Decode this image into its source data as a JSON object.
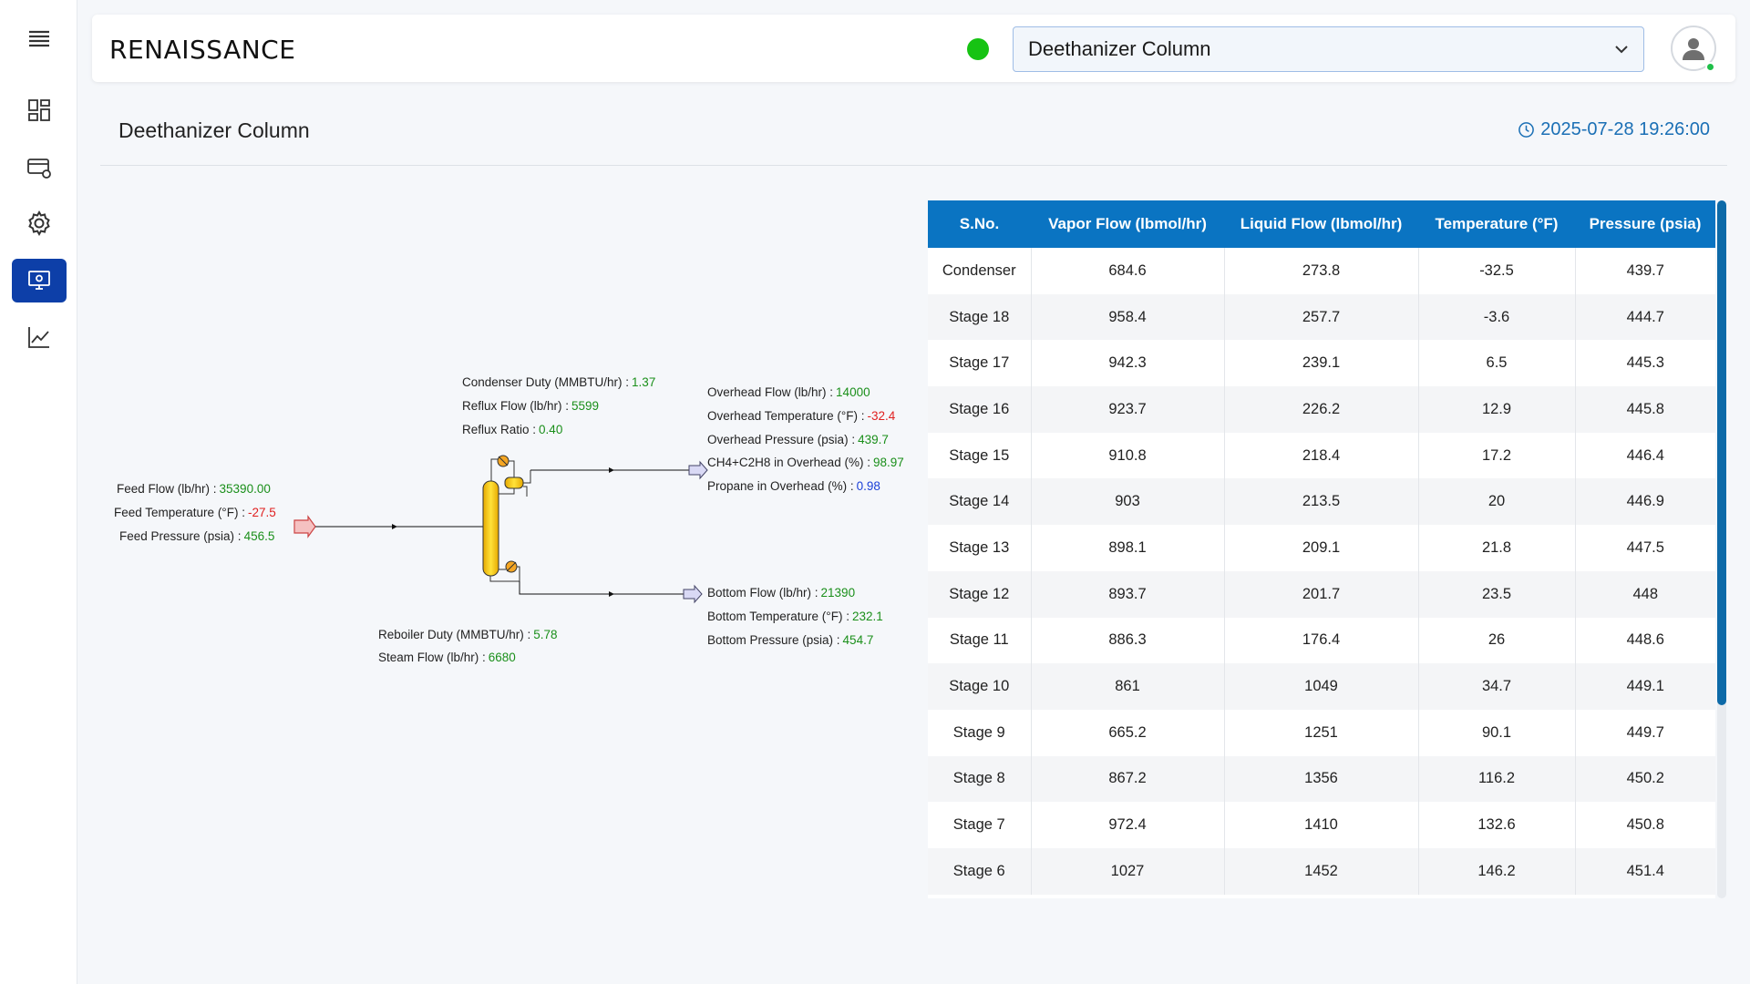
{
  "brand": "RENAISSANCE",
  "selector": {
    "value": "Deethanizer Column"
  },
  "page": {
    "title": "Deethanizer Column",
    "timestamp": "2025-07-28 19:26:00"
  },
  "sidebar": {
    "items": [
      "menu-icon",
      "dashboard-icon",
      "card-settings-icon",
      "gear-icon",
      "monitor-icon",
      "trend-chart-icon"
    ],
    "active": "monitor-icon"
  },
  "diagram": {
    "condenser_duty": {
      "label": "Condenser Duty (MMBTU/hr) :",
      "value": "1.37"
    },
    "reflux_flow": {
      "label": "Reflux Flow (lb/hr) :",
      "value": "5599"
    },
    "reflux_ratio": {
      "label": "Reflux Ratio :",
      "value": "0.40"
    },
    "overhead_flow": {
      "label": "Overhead Flow (lb/hr) :",
      "value": "14000"
    },
    "overhead_temp": {
      "label": "Overhead Temperature (°F) :",
      "value": "-32.4"
    },
    "overhead_pressure": {
      "label": "Overhead Pressure (psia) :",
      "value": "439.7"
    },
    "ch4_c2h8": {
      "label": "CH4+C2H8 in Overhead (%) :",
      "value": "98.97"
    },
    "propane": {
      "label": "Propane in Overhead (%) :",
      "value": "0.98"
    },
    "feed_flow": {
      "label": "Feed Flow (lb/hr) :",
      "value": "35390.00"
    },
    "feed_temp": {
      "label": "Feed Temperature (°F) :",
      "value": "-27.5"
    },
    "feed_pressure": {
      "label": "Feed Pressure (psia) :",
      "value": "456.5"
    },
    "bottom_flow": {
      "label": "Bottom Flow (lb/hr) :",
      "value": "21390"
    },
    "bottom_temp": {
      "label": "Bottom Temperature (°F) :",
      "value": "232.1"
    },
    "bottom_pressure": {
      "label": "Bottom Pressure (psia) :",
      "value": "454.7"
    },
    "reboiler_duty": {
      "label": "Reboiler Duty (MMBTU/hr) :",
      "value": "5.78"
    },
    "steam_flow": {
      "label": "Steam Flow (lb/hr) :",
      "value": "6680"
    }
  },
  "table": {
    "headers": [
      "S.No.",
      "Vapor Flow (lbmol/hr)",
      "Liquid Flow (lbmol/hr)",
      "Temperature (°F)",
      "Pressure (psia)"
    ],
    "rows": [
      [
        "Condenser",
        "684.6",
        "273.8",
        "-32.5",
        "439.7"
      ],
      [
        "Stage 18",
        "958.4",
        "257.7",
        "-3.6",
        "444.7"
      ],
      [
        "Stage 17",
        "942.3",
        "239.1",
        "6.5",
        "445.3"
      ],
      [
        "Stage 16",
        "923.7",
        "226.2",
        "12.9",
        "445.8"
      ],
      [
        "Stage 15",
        "910.8",
        "218.4",
        "17.2",
        "446.4"
      ],
      [
        "Stage 14",
        "903",
        "213.5",
        "20",
        "446.9"
      ],
      [
        "Stage 13",
        "898.1",
        "209.1",
        "21.8",
        "447.5"
      ],
      [
        "Stage 12",
        "893.7",
        "201.7",
        "23.5",
        "448"
      ],
      [
        "Stage 11",
        "886.3",
        "176.4",
        "26",
        "448.6"
      ],
      [
        "Stage 10",
        "861",
        "1049",
        "34.7",
        "449.1"
      ],
      [
        "Stage 9",
        "665.2",
        "1251",
        "90.1",
        "449.7"
      ],
      [
        "Stage 8",
        "867.2",
        "1356",
        "116.2",
        "450.2"
      ],
      [
        "Stage 7",
        "972.4",
        "1410",
        "132.6",
        "450.8"
      ],
      [
        "Stage 6",
        "1027",
        "1452",
        "146.2",
        "451.4"
      ]
    ]
  }
}
